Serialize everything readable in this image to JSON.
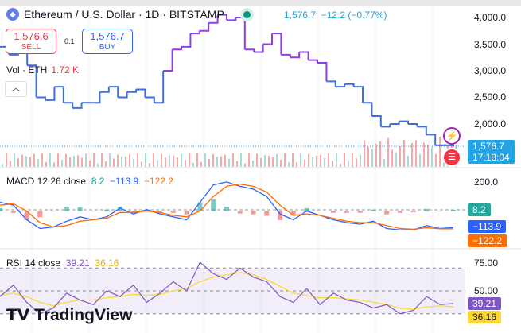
{
  "header": {
    "title": "Ethereum / U.S. Dollar · 1D · BITSTAMP",
    "last": "1,576.7",
    "change": "−12.2 (−0.77%)"
  },
  "trade": {
    "sell_price": "1,576.6",
    "sell_label": "SELL",
    "spread": "0.1",
    "buy_price": "1,576.7",
    "buy_label": "BUY"
  },
  "volume": {
    "label": "Vol · ETH",
    "value": "1.72 K"
  },
  "price_axis": [
    "4,000.0",
    "3,500.0",
    "3,000.0",
    "2,500.0",
    "2,000.0"
  ],
  "price_tag": {
    "price": "1,576.7",
    "countdown": "17:18:04"
  },
  "macd": {
    "label": "MACD 12 26 close",
    "hist": "8.2",
    "macd": "−113.9",
    "signal": "−122.2",
    "axis": [
      "200.0"
    ]
  },
  "rsi": {
    "label": "RSI 14 close",
    "rsi": "39.21",
    "ma": "36.16",
    "axis": [
      "75.00",
      "50.00"
    ]
  },
  "logo": "TradingView",
  "colors": {
    "up": "#089981",
    "down": "#f23645",
    "price_blue": "#3d6fe0",
    "price_purple": "#8e3ee8",
    "macd": "#2962ff",
    "signal": "#ff6d00",
    "rsi": "#7e57c2",
    "rsi_ma": "#fdd835"
  },
  "chart_data": [
    {
      "type": "line",
      "title": "Ethereum / U.S. Dollar · 1D · BITSTAMP",
      "ylim": [
        1400,
        4100
      ],
      "values": [
        3450,
        3300,
        3350,
        3100,
        2500,
        2450,
        2700,
        2400,
        2300,
        2400,
        2400,
        2600,
        2700,
        2500,
        2600,
        2650,
        2500,
        2400,
        3000,
        3400,
        3450,
        3700,
        3750,
        3900,
        4050,
        3950,
        4000,
        3400,
        3350,
        3500,
        3700,
        3300,
        3250,
        3350,
        3200,
        3150,
        2800,
        2700,
        2750,
        2700,
        2400,
        2150,
        1950,
        2000,
        2050,
        2000,
        1950,
        1800,
        1600,
        1600,
        1577
      ]
    },
    {
      "type": "line",
      "title": "MACD 12 26 close",
      "series": [
        {
          "name": "MACD",
          "values": [
            60,
            40,
            -60,
            -120,
            -110,
            -70,
            -40,
            -60,
            -40,
            20,
            -20,
            10,
            -20,
            -40,
            -60,
            60,
            180,
            200,
            170,
            150,
            100,
            -20,
            -60,
            0,
            -30,
            -60,
            -80,
            -90,
            -70,
            -120,
            -130,
            -130,
            -100,
            -120,
            -114
          ]
        },
        {
          "name": "Signal",
          "values": [
            40,
            50,
            0,
            -80,
            -110,
            -100,
            -70,
            -60,
            -50,
            -10,
            -10,
            0,
            -10,
            -30,
            -40,
            0,
            100,
            170,
            185,
            170,
            130,
            40,
            -30,
            -20,
            -30,
            -50,
            -70,
            -80,
            -80,
            -100,
            -120,
            -125,
            -115,
            -122,
            -122
          ]
        }
      ]
    },
    {
      "type": "line",
      "title": "RSI 14 close",
      "ylim": [
        25,
        80
      ],
      "series": [
        {
          "name": "RSI",
          "values": [
            45,
            55,
            40,
            30,
            35,
            48,
            42,
            38,
            50,
            45,
            55,
            40,
            48,
            58,
            50,
            75,
            65,
            60,
            70,
            62,
            58,
            45,
            40,
            52,
            38,
            48,
            42,
            40,
            35,
            38,
            30,
            33,
            45,
            38,
            39
          ]
        },
        {
          "name": "MA",
          "values": [
            46,
            48,
            45,
            40,
            37,
            40,
            42,
            42,
            44,
            45,
            47,
            46,
            47,
            50,
            52,
            58,
            62,
            64,
            66,
            64,
            60,
            54,
            48,
            46,
            44,
            44,
            43,
            42,
            40,
            38,
            35,
            34,
            36,
            37,
            36
          ]
        }
      ]
    }
  ]
}
